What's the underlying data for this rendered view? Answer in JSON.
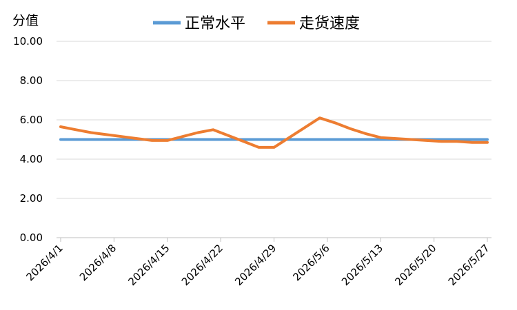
{
  "chart_data": {
    "type": "line",
    "ylabel": "分值",
    "ylim": [
      0,
      10
    ],
    "yticks": [
      "0.00",
      "2.00",
      "4.00",
      "6.00",
      "8.00",
      "10.00"
    ],
    "categories": [
      "2026/4/1",
      "2026/4/8",
      "2026/4/15",
      "2026/4/22",
      "2026/4/29",
      "2026/5/6",
      "2026/5/13",
      "2026/5/20",
      "2026/5/27"
    ],
    "x": [
      "2026-04-01",
      "2026-04-03",
      "2026-04-05",
      "2026-04-07",
      "2026-04-09",
      "2026-04-11",
      "2026-04-13",
      "2026-04-15",
      "2026-04-17",
      "2026-04-19",
      "2026-04-21",
      "2026-04-23",
      "2026-04-25",
      "2026-04-27",
      "2026-04-29",
      "2026-05-01",
      "2026-05-03",
      "2026-05-05",
      "2026-05-07",
      "2026-05-09",
      "2026-05-11",
      "2026-05-13",
      "2026-05-15",
      "2026-05-17",
      "2026-05-19",
      "2026-05-21",
      "2026-05-23",
      "2026-05-25",
      "2026-05-27"
    ],
    "series": [
      {
        "name": "正常水平",
        "color": "#5B9BD5",
        "values": [
          5,
          5,
          5,
          5,
          5,
          5,
          5,
          5,
          5,
          5,
          5,
          5,
          5,
          5,
          5,
          5,
          5,
          5,
          5,
          5,
          5,
          5,
          5,
          5,
          5,
          5,
          5,
          5,
          5
        ]
      },
      {
        "name": "走货速度",
        "color": "#ED7D31",
        "values": [
          5.65,
          5.5,
          5.35,
          5.25,
          5.15,
          5.05,
          4.95,
          4.95,
          5.15,
          5.35,
          5.5,
          5.2,
          4.9,
          4.6,
          4.6,
          5.1,
          5.6,
          6.1,
          5.85,
          5.55,
          5.3,
          5.1,
          5.05,
          5.0,
          4.95,
          4.9,
          4.9,
          4.85,
          4.85
        ]
      }
    ],
    "grid": true,
    "legend": "top"
  }
}
